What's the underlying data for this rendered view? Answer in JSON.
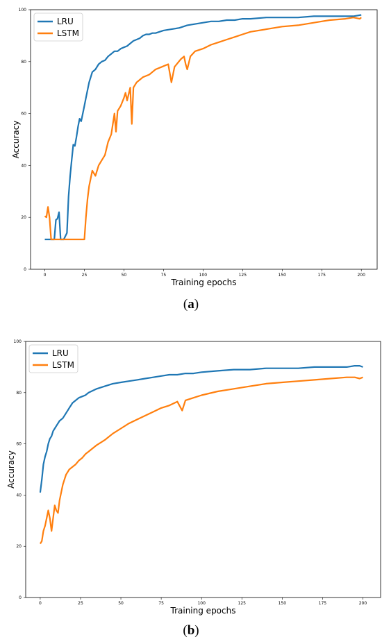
{
  "colors": {
    "lru": "#1f77b4",
    "lstm": "#ff7f0e",
    "frame": "#000000"
  },
  "panels": [
    {
      "caption_prefix": "(",
      "caption_letter": "a",
      "caption_suffix": ")"
    },
    {
      "caption_prefix": "(",
      "caption_letter": "b",
      "caption_suffix": ")"
    }
  ],
  "chart_data": [
    {
      "type": "line",
      "title": "",
      "xlabel": "Training epochs",
      "ylabel": "Accuracy",
      "xlim": [
        -9,
        210
      ],
      "ylim": [
        0,
        100
      ],
      "xticks": [
        0,
        25,
        50,
        75,
        100,
        125,
        150,
        175,
        200
      ],
      "yticks": [
        0,
        20,
        40,
        60,
        80,
        100
      ],
      "legend": "top-left",
      "grid": false,
      "series": [
        {
          "name": "LRU",
          "x": [
            0,
            4,
            6,
            7,
            8,
            9,
            10,
            12,
            14,
            15,
            16,
            17,
            18,
            19,
            20,
            21,
            22,
            23,
            24,
            25,
            26,
            28,
            30,
            32,
            34,
            36,
            38,
            40,
            42,
            44,
            46,
            48,
            50,
            52,
            54,
            56,
            58,
            60,
            62,
            64,
            66,
            68,
            70,
            75,
            80,
            85,
            90,
            95,
            100,
            105,
            110,
            115,
            120,
            125,
            130,
            140,
            150,
            160,
            170,
            180,
            190,
            195,
            200
          ],
          "values": [
            11.5,
            11.5,
            11.5,
            19,
            19.5,
            22,
            11.5,
            11.5,
            14,
            28,
            36,
            42,
            48,
            47.5,
            51,
            55,
            58,
            57,
            60,
            63,
            66,
            72,
            76,
            77,
            79,
            80,
            80.5,
            82,
            83,
            84,
            84,
            85,
            85.5,
            86,
            87,
            88,
            88.5,
            89,
            90,
            90.5,
            90.5,
            91,
            91,
            92,
            92.5,
            93,
            94,
            94.5,
            95,
            95.5,
            95.5,
            96,
            96,
            96.5,
            96.5,
            97,
            97,
            97,
            97.5,
            97.5,
            97.5,
            97.5,
            98
          ]
        },
        {
          "name": "LSTM",
          "x": [
            0,
            1,
            2,
            3,
            4,
            5,
            10,
            20,
            25,
            26,
            27,
            28,
            29,
            30,
            32,
            34,
            36,
            38,
            40,
            42,
            43,
            44,
            45,
            46,
            48,
            50,
            51,
            52,
            54,
            55,
            56,
            58,
            60,
            62,
            64,
            66,
            68,
            70,
            74,
            78,
            80,
            82,
            86,
            88,
            89,
            90,
            92,
            95,
            100,
            105,
            110,
            115,
            120,
            125,
            130,
            140,
            150,
            160,
            165,
            170,
            175,
            180,
            190,
            195,
            199,
            200
          ],
          "values": [
            20.5,
            20,
            24,
            20,
            11.5,
            11.5,
            11.5,
            11.5,
            11.5,
            20,
            27,
            32,
            35,
            38,
            36,
            40,
            42,
            44,
            49,
            52,
            56,
            60,
            53,
            61,
            63,
            66,
            68,
            65,
            70,
            56,
            70,
            72,
            73,
            74,
            74.5,
            75,
            76,
            77,
            78,
            79,
            72,
            78,
            81,
            82,
            79,
            77,
            82,
            84,
            85,
            86.5,
            87.5,
            88.5,
            89.5,
            90.5,
            91.5,
            92.5,
            93.5,
            94,
            94.5,
            95,
            95.5,
            96,
            96.5,
            97,
            96.5,
            97
          ]
        }
      ]
    },
    {
      "type": "line",
      "title": "",
      "xlabel": "Training epochs",
      "ylabel": "Accuracy",
      "xlim": [
        -9,
        211
      ],
      "ylim": [
        0,
        100
      ],
      "xticks": [
        0,
        25,
        50,
        75,
        100,
        125,
        150,
        175,
        200
      ],
      "yticks": [
        0,
        20,
        40,
        60,
        80,
        100
      ],
      "legend": "top-left",
      "grid": false,
      "series": [
        {
          "name": "LRU",
          "x": [
            0,
            1,
            2,
            3,
            4,
            5,
            6,
            7,
            8,
            9,
            10,
            12,
            14,
            16,
            18,
            20,
            22,
            24,
            26,
            28,
            30,
            35,
            40,
            45,
            50,
            55,
            60,
            65,
            70,
            75,
            80,
            85,
            90,
            95,
            100,
            110,
            120,
            130,
            140,
            150,
            160,
            170,
            180,
            190,
            195,
            198,
            200
          ],
          "values": [
            41,
            46,
            52,
            55,
            57,
            60,
            62,
            63,
            65,
            66,
            67,
            69,
            70,
            72,
            74,
            76,
            77,
            78,
            78.5,
            79,
            80,
            81.5,
            82.5,
            83.5,
            84,
            84.5,
            85,
            85.5,
            86,
            86.5,
            87,
            87,
            87.5,
            87.5,
            88,
            88.5,
            89,
            89,
            89.5,
            89.5,
            89.5,
            90,
            90,
            90,
            90.5,
            90.5,
            90
          ]
        },
        {
          "name": "LSTM",
          "x": [
            0,
            1,
            2,
            3,
            4,
            5,
            6,
            7,
            8,
            9,
            10,
            11,
            12,
            13,
            14,
            15,
            16,
            18,
            20,
            22,
            24,
            26,
            28,
            30,
            32,
            35,
            40,
            45,
            50,
            55,
            60,
            65,
            70,
            75,
            80,
            85,
            88,
            90,
            95,
            100,
            110,
            120,
            130,
            140,
            150,
            160,
            170,
            180,
            190,
            195,
            198,
            200
          ],
          "values": [
            21,
            22,
            26,
            28,
            31,
            34,
            31,
            26,
            31,
            36,
            34,
            33,
            38,
            41,
            44,
            46,
            48,
            50,
            51,
            52,
            53.5,
            54.5,
            56,
            57,
            58,
            59.5,
            61.5,
            64,
            66,
            68,
            69.5,
            71,
            72.5,
            74,
            75,
            76.5,
            73,
            77,
            78,
            79,
            80.5,
            81.5,
            82.5,
            83.5,
            84,
            84.5,
            85,
            85.5,
            86,
            86,
            85.5,
            86
          ]
        }
      ]
    }
  ]
}
